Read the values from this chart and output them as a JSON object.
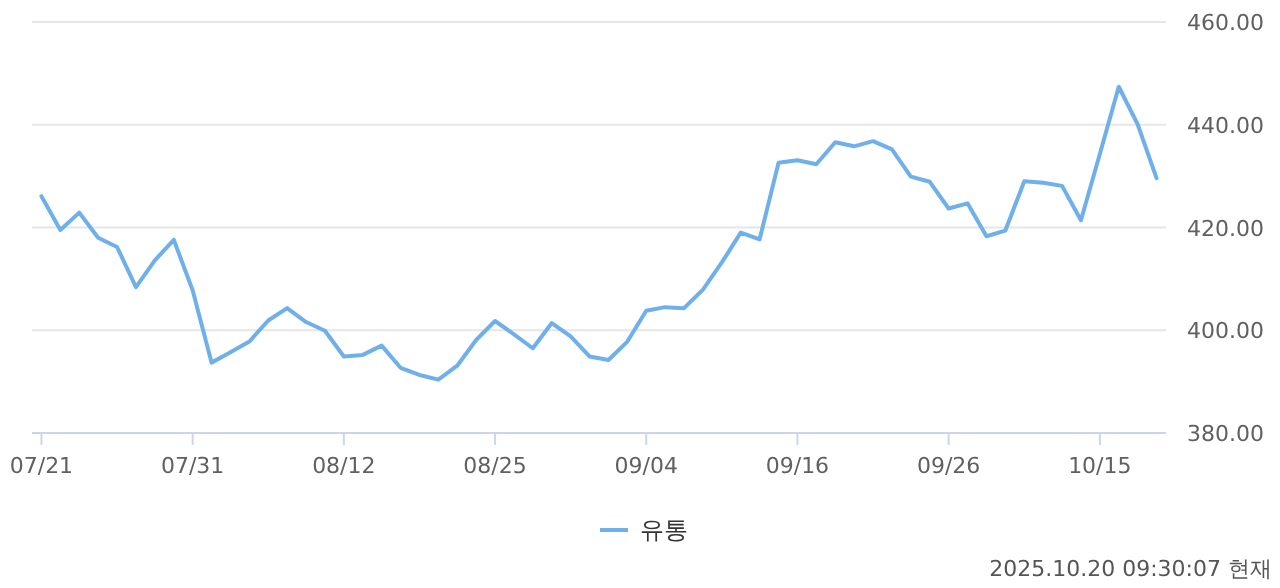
{
  "chart_data": {
    "type": "line",
    "categories": [
      "07/21",
      null,
      null,
      null,
      null,
      null,
      null,
      null,
      "07/31",
      null,
      null,
      null,
      null,
      null,
      null,
      null,
      "08/12",
      null,
      null,
      null,
      null,
      null,
      null,
      null,
      "08/25",
      null,
      null,
      null,
      null,
      null,
      null,
      null,
      "09/04",
      null,
      null,
      null,
      null,
      null,
      null,
      null,
      "09/16",
      null,
      null,
      null,
      null,
      null,
      null,
      null,
      "09/26",
      null,
      null,
      null,
      null,
      null,
      null,
      null,
      "10/15",
      null,
      null,
      null
    ],
    "series": [
      {
        "name": "유통",
        "color": "#6fb0ea",
        "values": [
          426.1,
          419.5,
          422.9,
          418.0,
          416.2,
          408.4,
          413.6,
          417.6,
          407.8,
          393.7,
          395.7,
          397.8,
          401.9,
          404.3,
          401.6,
          399.9,
          394.9,
          395.2,
          397.0,
          392.7,
          391.3,
          390.4,
          393.1,
          398.1,
          401.8,
          399.2,
          396.5,
          401.4,
          398.8,
          394.9,
          394.2,
          397.8,
          403.8,
          404.5,
          404.3,
          407.9,
          413.2,
          419.0,
          417.7,
          432.6,
          433.1,
          432.3,
          436.6,
          435.8,
          436.8,
          435.2,
          429.9,
          428.9,
          423.7,
          424.7,
          418.3,
          419.4,
          429.0,
          428.7,
          428.1,
          421.4,
          434.3,
          447.4,
          440.1,
          429.6
        ]
      }
    ],
    "ylim": [
      380,
      460
    ],
    "yticks": [
      {
        "value": 380,
        "label": "380.00"
      },
      {
        "value": 400,
        "label": "400.00"
      },
      {
        "value": 420,
        "label": "420.00"
      },
      {
        "value": 440,
        "label": "440.00"
      },
      {
        "value": 460,
        "label": "460.00"
      }
    ],
    "grid": "y",
    "legend": "bottom",
    "annotations": [
      "2025.10.20 09:30:07 현재"
    ]
  }
}
